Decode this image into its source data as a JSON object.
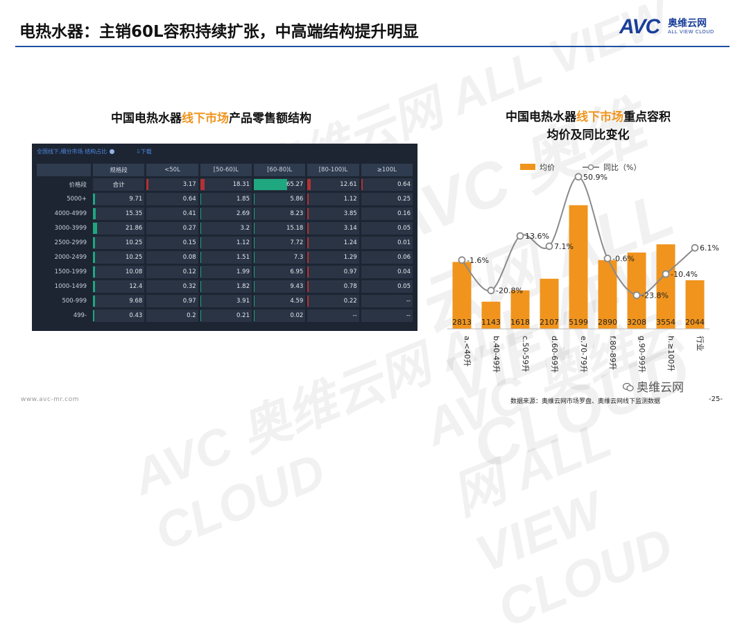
{
  "header": {
    "title": "电热水器：主销60L容积持续扩张，中高端结构提升明显",
    "logo_text": "AVC",
    "logo_cn": "奥维云网",
    "logo_en": "ALL VIEW CLOUD"
  },
  "watermark": "AVC 奥维云网 ALL VIEW CLOUD",
  "left_panel": {
    "title_pre": "中国电热水器",
    "title_hl": "线下市场",
    "title_post": "产品零售额结构",
    "toolbar_path": "全国线下,细分市场 结构占比",
    "toolbar_download": "下载",
    "header": [
      "规格段",
      "<50L",
      "[50-60)L",
      "[60-80)L",
      "[80-100)L",
      "≥100L"
    ],
    "rows": [
      {
        "label": "价格段",
        "cells": [
          "合计",
          "3.17",
          "18.31",
          "65.27",
          "12.61",
          "0.64"
        ]
      },
      {
        "label": "5000+",
        "cells": [
          "9.71",
          "0.64",
          "1.85",
          "5.86",
          "1.12",
          "0.25"
        ]
      },
      {
        "label": "4000-4999",
        "cells": [
          "15.35",
          "0.41",
          "2.69",
          "8.23",
          "3.85",
          "0.16"
        ]
      },
      {
        "label": "3000-3999",
        "cells": [
          "21.86",
          "0.27",
          "3.2",
          "15.18",
          "3.14",
          "0.05"
        ]
      },
      {
        "label": "2500-2999",
        "cells": [
          "10.25",
          "0.15",
          "1.12",
          "7.72",
          "1.24",
          "0.01"
        ]
      },
      {
        "label": "2000-2499",
        "cells": [
          "10.25",
          "0.08",
          "1.51",
          "7.3",
          "1.29",
          "0.06"
        ]
      },
      {
        "label": "1500-1999",
        "cells": [
          "10.08",
          "0.12",
          "1.99",
          "6.95",
          "0.97",
          "0.04"
        ]
      },
      {
        "label": "1000-1499",
        "cells": [
          "12.4",
          "0.32",
          "1.82",
          "9.43",
          "0.78",
          "0.05"
        ]
      },
      {
        "label": "500-999",
        "cells": [
          "9.68",
          "0.97",
          "3.91",
          "4.59",
          "0.22",
          "--"
        ]
      },
      {
        "label": "499-",
        "cells": [
          "0.43",
          "0.2",
          "0.21",
          "0.02",
          "--",
          "--"
        ]
      }
    ],
    "colors": {
      "total_bar": "#b23232",
      "price_bar": "#1fa77f"
    }
  },
  "right_panel": {
    "title_pre": "中国电热水器",
    "title_hl": "线下市场",
    "title_post": "重点容积",
    "title_line2": "均价及同比变化"
  },
  "chart_data": {
    "type": "bar",
    "categories": [
      "a.<40升",
      "b.40-49升",
      "c.50-59升",
      "d.60-69升",
      "e.70-79升",
      "f.80-89升",
      "g.90-99升",
      "h.≥100升",
      "行业"
    ],
    "series": [
      {
        "name": "均价",
        "type": "bar",
        "values": [
          2813,
          1143,
          1618,
          2107,
          5199,
          2890,
          3208,
          3554,
          2044
        ],
        "color": "#f0941d"
      },
      {
        "name": "同比（%）",
        "type": "line",
        "values": [
          -1.6,
          -20.8,
          13.6,
          7.1,
          50.9,
          -0.6,
          -23.8,
          -10.4,
          6.1
        ],
        "labels": [
          "-1.6%",
          "-20.8%",
          "13.6%",
          "7.1%",
          "50.9%",
          "-0.6%",
          "-23.8%",
          "-10.4%",
          "6.1%"
        ],
        "color": "#8a8a8a"
      }
    ],
    "legend_position": "top",
    "bar_ylim": [
      0,
      7000
    ],
    "line_ylim": [
      -45,
      60
    ],
    "grid": false
  },
  "footer": {
    "url": "www.avc-mr.com",
    "source": "数据来源：奥维云网市场罗盘、奥维云网线下监测数据",
    "page": "-25-",
    "wechat": "奥维云网"
  }
}
